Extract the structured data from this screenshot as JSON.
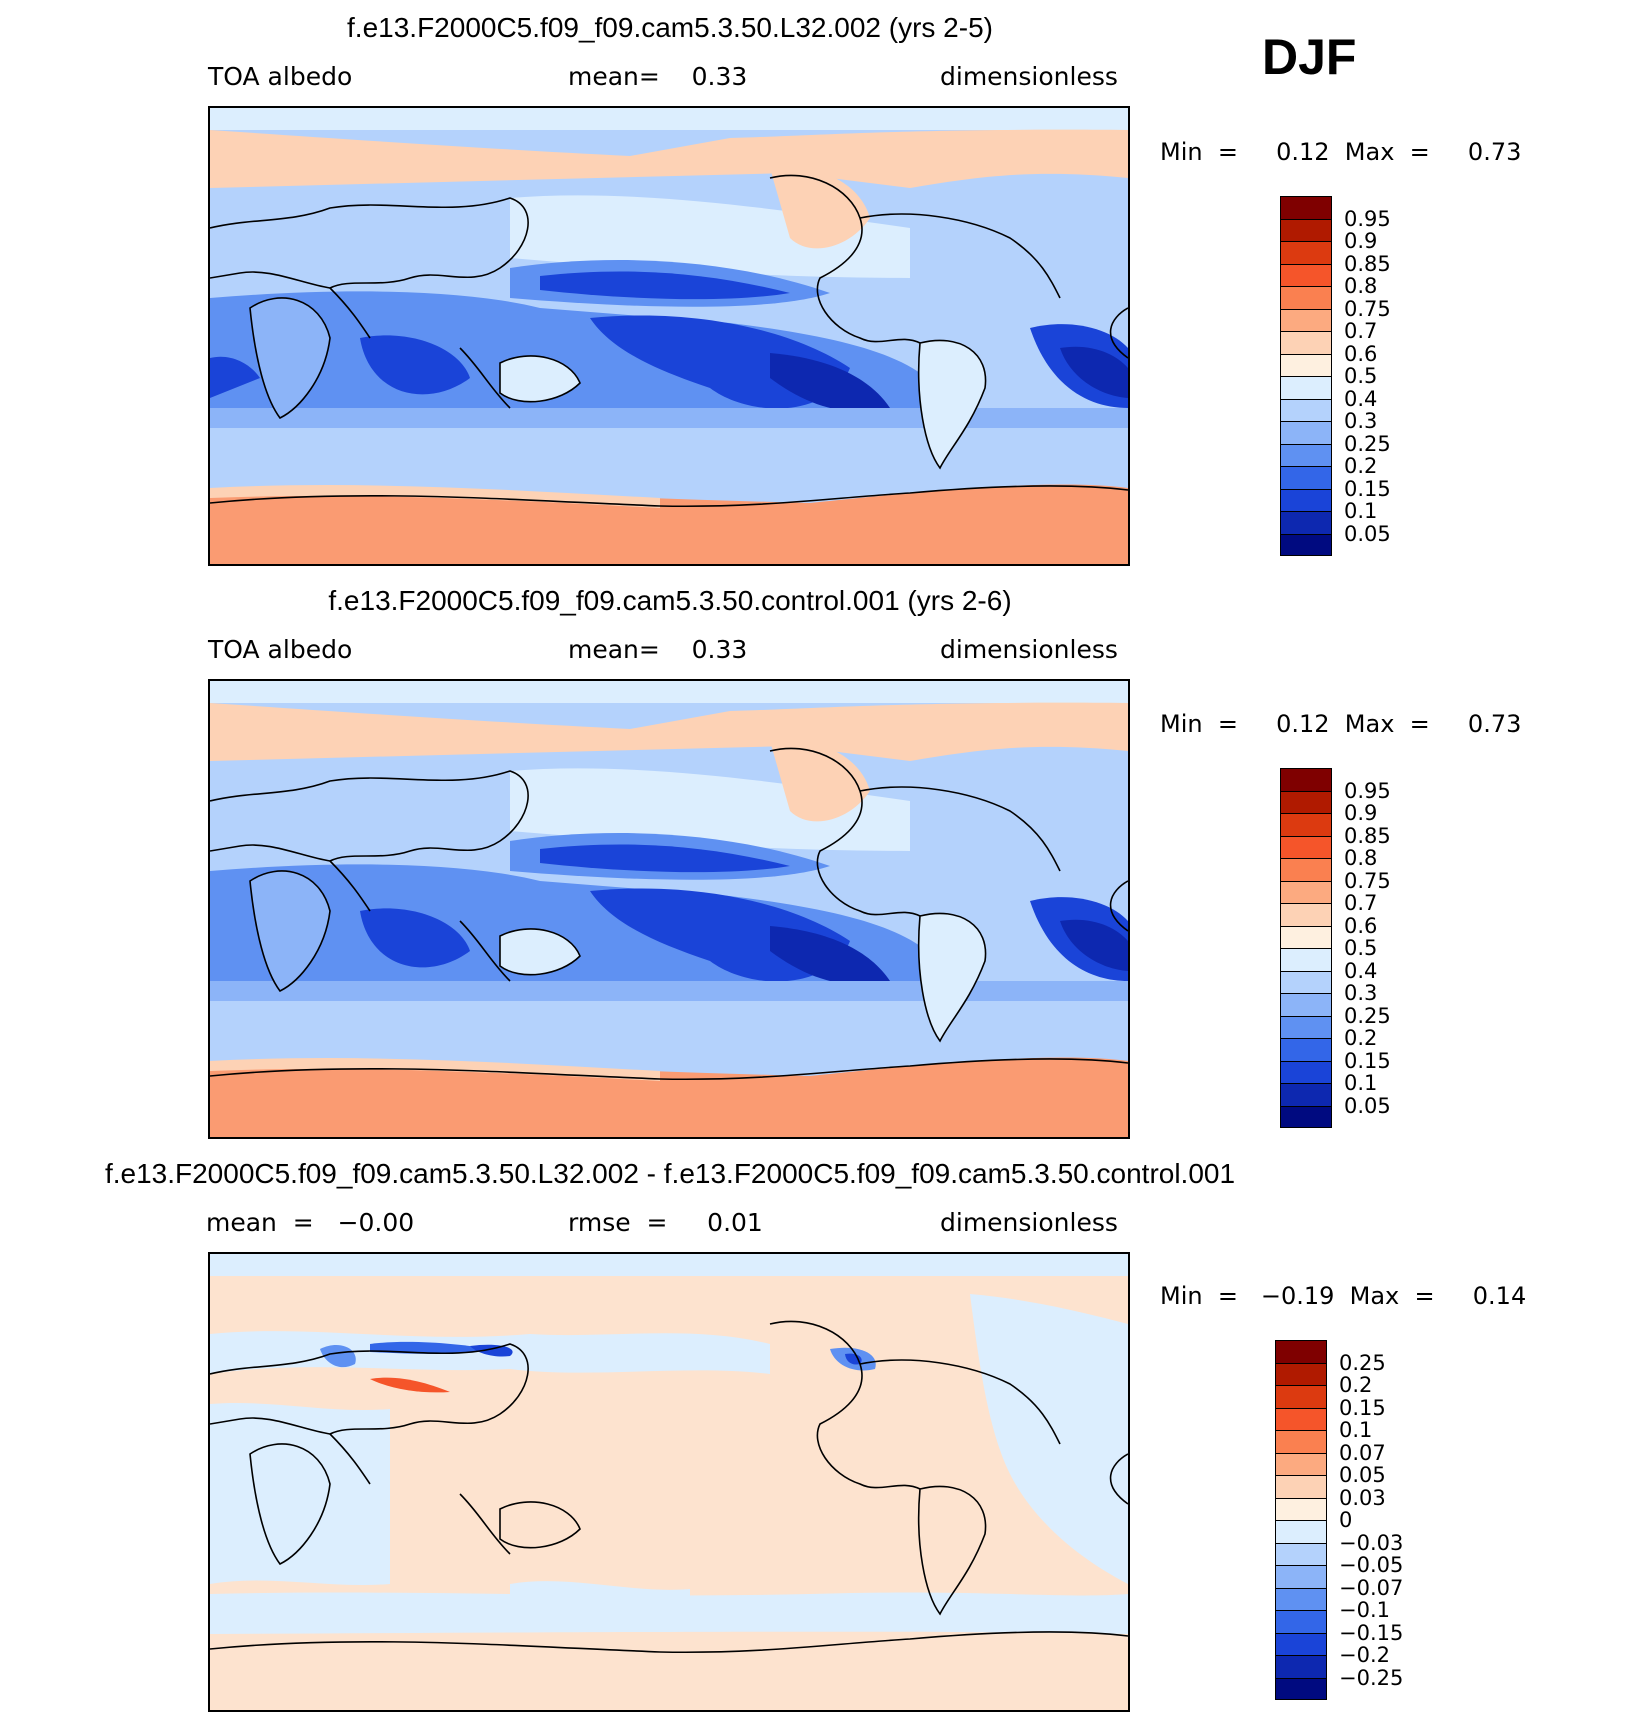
{
  "season": "DJF",
  "panels": [
    {
      "title": "f.e13.F2000C5.f09_f09.cam5.3.50.L32.002 (yrs 2-5)",
      "left_label": "TOA albedo",
      "center_label": "mean=    0.33",
      "right_label": "dimensionless",
      "min_label": "Min  =     0.12  Max  =     0.73",
      "colorbar": {
        "colors": [
          "#7f0000",
          "#b01a00",
          "#dc3a10",
          "#f5552a",
          "#fa8050",
          "#fcaa80",
          "#fdd2b5",
          "#fef0e0",
          "#dceefe",
          "#b4d2fc",
          "#8cb4f8",
          "#5f91f2",
          "#3366e8",
          "#1a44d8",
          "#0d28b0",
          "#000a80"
        ],
        "labels": [
          "0.95",
          "0.9",
          "0.85",
          "0.8",
          "0.75",
          "0.7",
          "0.6",
          "0.5",
          "0.4",
          "0.3",
          "0.25",
          "0.2",
          "0.15",
          "0.1",
          "0.05"
        ]
      }
    },
    {
      "title": "f.e13.F2000C5.f09_f09.cam5.3.50.control.001 (yrs 2-6)",
      "left_label": "TOA albedo",
      "center_label": "mean=    0.33",
      "right_label": "dimensionless",
      "min_label": "Min  =     0.12  Max  =     0.73",
      "colorbar": {
        "colors": [
          "#7f0000",
          "#b01a00",
          "#dc3a10",
          "#f5552a",
          "#fa8050",
          "#fcaa80",
          "#fdd2b5",
          "#fef0e0",
          "#dceefe",
          "#b4d2fc",
          "#8cb4f8",
          "#5f91f2",
          "#3366e8",
          "#1a44d8",
          "#0d28b0",
          "#000a80"
        ],
        "labels": [
          "0.95",
          "0.9",
          "0.85",
          "0.8",
          "0.75",
          "0.7",
          "0.6",
          "0.5",
          "0.4",
          "0.3",
          "0.25",
          "0.2",
          "0.15",
          "0.1",
          "0.05"
        ]
      }
    },
    {
      "title": "f.e13.F2000C5.f09_f09.cam5.3.50.L32.002 - f.e13.F2000C5.f09_f09.cam5.3.50.control.001",
      "left_label": "mean  =   −0.00",
      "center_label": "rmse  =     0.01",
      "right_label": "dimensionless",
      "min_label": "Min  =   −0.19  Max  =     0.14",
      "colorbar": {
        "colors": [
          "#7f0000",
          "#b01a00",
          "#dc3a10",
          "#f5552a",
          "#fa8050",
          "#fcaa80",
          "#fdd2b5",
          "#fef0e0",
          "#dceefe",
          "#b4d2fc",
          "#8cb4f8",
          "#5f91f2",
          "#3366e8",
          "#1a44d8",
          "#0d28b0",
          "#000a80"
        ],
        "labels": [
          "0.25",
          "0.2",
          "0.15",
          "0.1",
          "0.07",
          "0.05",
          "0.03",
          "0",
          "−0.03",
          "−0.05",
          "−0.07",
          "−0.1",
          "−0.15",
          "−0.2",
          "−0.25"
        ]
      }
    }
  ],
  "colors": {
    "ocean_deep": "#1a44d8",
    "ocean_mid": "#5f91f2",
    "ocean_light": "#b4d2fc",
    "polar": "#fa9b72",
    "ice_light": "#fdd2b5",
    "diff_pos": "#fde3cf",
    "diff_neg": "#dceefe"
  }
}
